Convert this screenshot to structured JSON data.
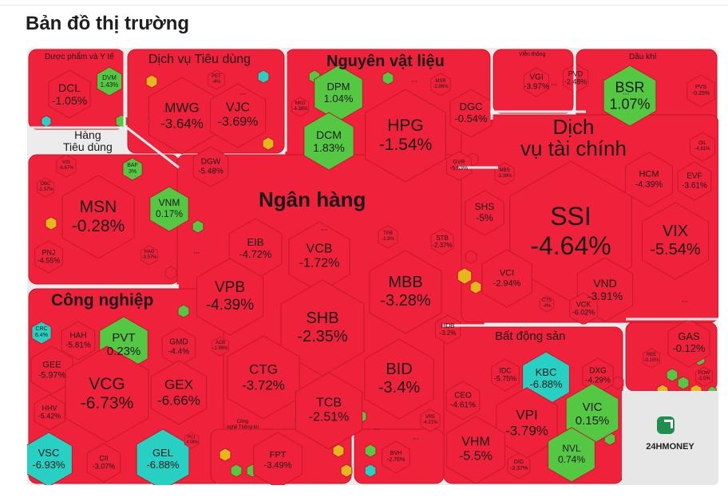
{
  "title": "Bản đồ thị trường",
  "colors": {
    "down": "#f0213a",
    "up": "#55c843",
    "flat": "#e6b71c",
    "ceiling": "#28cfc3",
    "border": "#c41828",
    "gap": "#ececec"
  },
  "sectors": [
    {
      "label": "Dược phẩm và Y tế"
    },
    {
      "label": "Dịch vụ Tiêu dùng"
    },
    {
      "label": "Nguyên vật liệu"
    },
    {
      "label": "Viễn thông"
    },
    {
      "label": "Dầu khí"
    },
    {
      "label": "Hàng\nTiêu dùng"
    },
    {
      "label": "Ngân hàng"
    },
    {
      "label": "Dịch\nvụ tài chính"
    },
    {
      "label": "Công nghiệp"
    },
    {
      "label": "Bất động sản"
    },
    {
      "label": "Công\nnghệ Thông tin"
    }
  ],
  "tickers": [
    {
      "symbol": "DCL",
      "change": "-1.05%"
    },
    {
      "symbol": "DVM",
      "change": "1.43%"
    },
    {
      "symbol": "MWG",
      "change": "-3.64%"
    },
    {
      "symbol": "VJC",
      "change": "-3.69%"
    },
    {
      "symbol": "PET",
      "change": "-4%"
    },
    {
      "symbol": "DGW",
      "change": "-5.48%"
    },
    {
      "symbol": "DPM",
      "change": "1.04%"
    },
    {
      "symbol": "MSR",
      "change": "-2.86%"
    },
    {
      "symbol": "NKG",
      "change": "-4.36%"
    },
    {
      "symbol": "DCM",
      "change": "1.83%"
    },
    {
      "symbol": "HPG",
      "change": "-1.54%"
    },
    {
      "symbol": "DGC",
      "change": "-0.54%"
    },
    {
      "symbol": "GVR",
      "change": "-5.53%"
    },
    {
      "symbol": "VGI",
      "change": "-3.97%"
    },
    {
      "symbol": "PVD",
      "change": "-2.48%"
    },
    {
      "symbol": "BSR",
      "change": "1.07%"
    },
    {
      "symbol": "PVS",
      "change": "-0.25%"
    },
    {
      "symbol": "OIL",
      "change": "-4.81%"
    },
    {
      "symbol": "VIS",
      "change": "-6.67%"
    },
    {
      "symbol": "BAF",
      "change": "3%"
    },
    {
      "symbol": "DBC",
      "change": "-2.37%"
    },
    {
      "symbol": "MSN",
      "change": "-0.28%"
    },
    {
      "symbol": "VNM",
      "change": "0.17%"
    },
    {
      "symbol": "PNJ",
      "change": "-4.55%"
    },
    {
      "symbol": "HAG",
      "change": "-3.57%"
    },
    {
      "symbol": "EIB",
      "change": "-4.72%"
    },
    {
      "symbol": "VCB",
      "change": "-1.72%"
    },
    {
      "symbol": "TPB",
      "change": "-1.9%"
    },
    {
      "symbol": "STB",
      "change": "-2.37%"
    },
    {
      "symbol": "VPB",
      "change": "-4.39%"
    },
    {
      "symbol": "MBB",
      "change": "-3.28%"
    },
    {
      "symbol": "SHB",
      "change": "-2.35%"
    },
    {
      "symbol": "ACB",
      "change": "-1.96%"
    },
    {
      "symbol": "HDB",
      "change": "-3.2%"
    },
    {
      "symbol": "CTG",
      "change": "-3.72%"
    },
    {
      "symbol": "BID",
      "change": "-3.4%"
    },
    {
      "symbol": "TCB",
      "change": "-2.51%"
    },
    {
      "symbol": "SSI",
      "change": "-4.64%"
    },
    {
      "symbol": "MBS",
      "change": "-3.39%"
    },
    {
      "symbol": "HCM",
      "change": "-4.39%"
    },
    {
      "symbol": "EVF",
      "change": "-3.61%"
    },
    {
      "symbol": "SHS",
      "change": "-5%"
    },
    {
      "symbol": "VIX",
      "change": "-5.54%"
    },
    {
      "symbol": "VCI",
      "change": "-2.94%"
    },
    {
      "symbol": "VND",
      "change": "-3.91%"
    },
    {
      "symbol": "CTS",
      "change": "-4%"
    },
    {
      "symbol": "VCK",
      "change": "-6.02%"
    },
    {
      "symbol": "GAS",
      "change": "-0.12%"
    },
    {
      "symbol": "REE",
      "change": "-0.15%"
    },
    {
      "symbol": "POW",
      "change": "-1.5%"
    },
    {
      "symbol": "CRC",
      "change": "6.4%"
    },
    {
      "symbol": "HAH",
      "change": "-5.81%"
    },
    {
      "symbol": "PVT",
      "change": "0.23%"
    },
    {
      "symbol": "GMD",
      "change": "-4.4%"
    },
    {
      "symbol": "GEE",
      "change": "-5.97%"
    },
    {
      "symbol": "VCG",
      "change": "-6.73%"
    },
    {
      "symbol": "GEX",
      "change": "-6.66%"
    },
    {
      "symbol": "HHV",
      "change": "-5.42%"
    },
    {
      "symbol": "VSC",
      "change": "-6.93%"
    },
    {
      "symbol": "CII",
      "change": "-3.07%"
    },
    {
      "symbol": "GEL",
      "change": "-6.88%"
    },
    {
      "symbol": "PC1",
      "change": "-4.08%"
    },
    {
      "symbol": "FPT",
      "change": "-3.49%"
    },
    {
      "symbol": "BVH",
      "change": "-2.76%"
    },
    {
      "symbol": "IDC",
      "change": "-5.75%"
    },
    {
      "symbol": "KBC",
      "change": "-6.88%"
    },
    {
      "symbol": "DXG",
      "change": "-4.29%"
    },
    {
      "symbol": "CEO",
      "change": "-4.61%"
    },
    {
      "symbol": "VPI",
      "change": "-3.79%"
    },
    {
      "symbol": "VIC",
      "change": "0.15%"
    },
    {
      "symbol": "VRE",
      "change": "-4.21%"
    },
    {
      "symbol": "VHM",
      "change": "-5.5%"
    },
    {
      "symbol": "DIG",
      "change": "-3.37%"
    },
    {
      "symbol": "NVL",
      "change": "0.74%"
    }
  ],
  "more_marker": "...",
  "logo_text": "24HMONEY"
}
